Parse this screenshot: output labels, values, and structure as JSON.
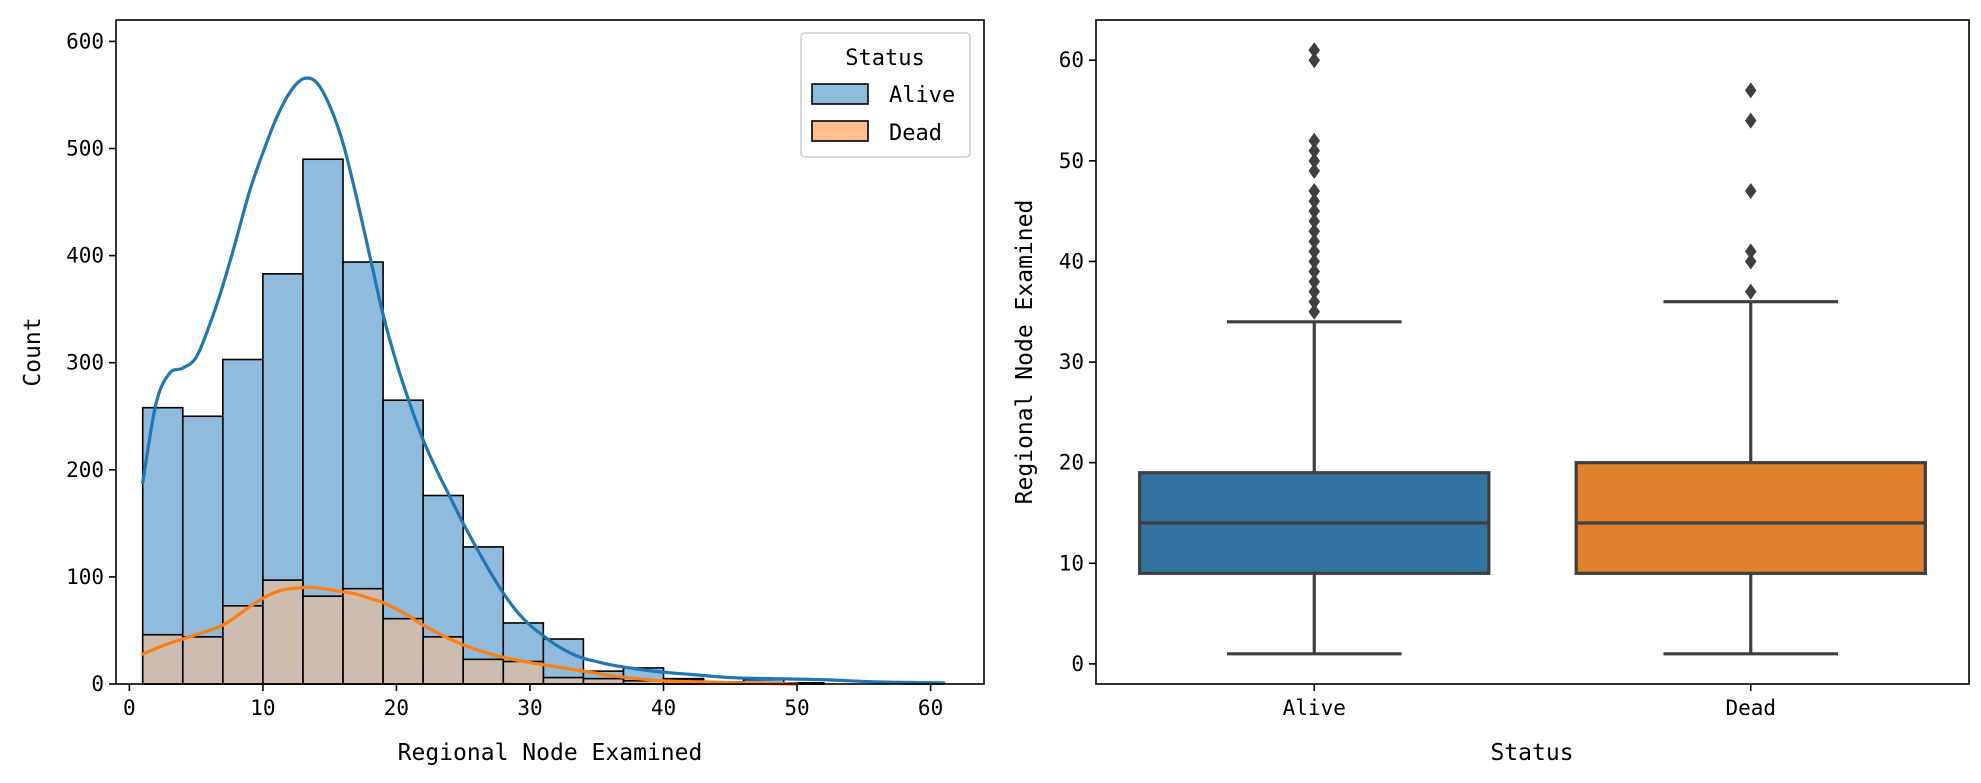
{
  "chart_data": [
    {
      "type": "bar",
      "subtype": "histogram-with-kde",
      "title": "",
      "xlabel": "Regional Node Examined",
      "ylabel": "Count",
      "xlim": [
        -1,
        64
      ],
      "ylim": [
        0,
        620
      ],
      "xticks": [
        0,
        10,
        20,
        30,
        40,
        50,
        60
      ],
      "yticks": [
        0,
        100,
        200,
        300,
        400,
        500,
        600
      ],
      "grid": false,
      "legend": {
        "title": "Status",
        "placement": "top-right",
        "entries": [
          "Alive",
          "Dead"
        ]
      },
      "bin_edges": [
        1,
        4,
        7,
        10,
        13,
        16,
        19,
        22,
        25,
        28,
        31,
        34,
        37,
        40,
        43,
        46,
        49,
        52,
        55,
        58,
        61
      ],
      "series": [
        {
          "name": "Alive",
          "fill_color": "#8fbbdc",
          "line_color": "#1f77b4",
          "values": [
            258,
            250,
            303,
            383,
            490,
            394,
            265,
            176,
            128,
            57,
            42,
            12,
            15,
            5,
            2,
            4,
            1,
            0,
            0,
            1
          ],
          "kde_x": [
            1,
            2,
            3,
            4,
            5,
            6,
            7,
            8,
            9,
            10,
            11,
            12,
            13,
            14,
            15,
            16,
            17,
            18,
            19,
            20,
            21,
            22,
            23,
            24,
            25,
            26,
            27,
            28,
            29,
            30,
            31,
            32,
            33,
            34,
            35,
            36,
            38,
            40,
            42,
            45,
            48,
            52,
            56,
            61
          ],
          "kde_y": [
            188,
            262,
            290,
            295,
            305,
            335,
            372,
            415,
            460,
            496,
            528,
            552,
            565,
            562,
            540,
            505,
            455,
            400,
            345,
            300,
            262,
            228,
            200,
            175,
            150,
            127,
            105,
            85,
            68,
            55,
            45,
            36,
            29,
            24,
            21,
            18,
            14,
            11,
            9,
            6,
            5,
            4,
            2,
            1
          ]
        },
        {
          "name": "Dead",
          "fill_color": "#ffbf8c",
          "line_color": "#ff7f0e",
          "values": [
            46,
            44,
            73,
            97,
            82,
            89,
            61,
            44,
            23,
            21,
            6,
            5,
            3,
            4,
            0,
            0,
            1,
            0,
            0,
            0
          ],
          "kde_x": [
            1,
            3,
            5,
            7,
            9,
            10,
            11,
            12,
            13,
            14,
            15,
            16,
            17,
            18,
            19,
            20,
            21,
            22,
            24,
            26,
            28,
            30,
            32,
            34,
            36,
            38,
            40,
            43,
            46,
            50
          ],
          "kde_y": [
            28,
            38,
            46,
            55,
            72,
            80,
            86,
            89,
            90,
            90,
            88,
            86,
            84,
            80,
            76,
            70,
            63,
            55,
            42,
            32,
            25,
            20,
            16,
            12,
            8,
            5,
            3,
            2,
            1,
            0
          ]
        }
      ]
    },
    {
      "type": "box",
      "title": "",
      "xlabel": "Status",
      "ylabel": "Regional Node Examined",
      "ylim": [
        -2,
        64
      ],
      "yticks": [
        0,
        10,
        20,
        30,
        40,
        50,
        60
      ],
      "grid": false,
      "categories": [
        "Alive",
        "Dead"
      ],
      "boxes": [
        {
          "name": "Alive",
          "color": "#3274a1",
          "whisker_low": 1,
          "q1": 9,
          "median": 14,
          "q3": 19,
          "whisker_high": 34,
          "outliers": [
            35,
            36,
            37,
            38,
            39,
            40,
            41,
            42,
            43,
            44,
            45,
            46,
            47,
            49,
            50,
            51,
            52,
            60,
            61
          ]
        },
        {
          "name": "Dead",
          "color": "#e1812c",
          "whisker_low": 1,
          "q1": 9,
          "median": 14,
          "q3": 20,
          "whisker_high": 36,
          "outliers": [
            37,
            40,
            41,
            47,
            54,
            57
          ]
        }
      ]
    }
  ]
}
